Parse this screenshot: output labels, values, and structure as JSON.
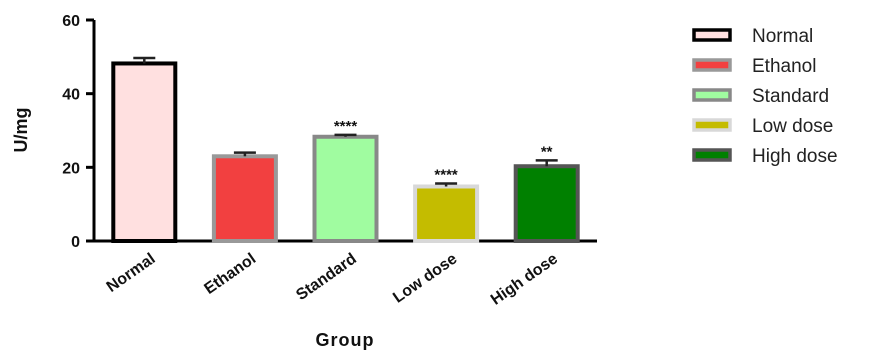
{
  "chart_data": {
    "type": "bar",
    "categories": [
      "Normal",
      "Ethanol",
      "Standard",
      "Low dose",
      "High dose"
    ],
    "values": [
      48.2,
      23.0,
      28.3,
      14.8,
      20.3
    ],
    "errors": [
      1.5,
      1.0,
      0.5,
      0.8,
      1.6
    ],
    "significance": [
      "",
      "",
      "****",
      "****",
      "**"
    ],
    "colors": [
      {
        "fill": "#FFE0E0",
        "stroke": "#000000"
      },
      {
        "fill": "#F24040",
        "stroke": "#999999"
      },
      {
        "fill": "#A0FCA0",
        "stroke": "#888888"
      },
      {
        "fill": "#C4BC00",
        "stroke": "#D8D8D8"
      },
      {
        "fill": "#008000",
        "stroke": "#555555"
      }
    ],
    "legend": [
      "Normal",
      "Ethanol",
      "Standard",
      "Low dose",
      "High dose"
    ],
    "legend_position": "right",
    "title": "",
    "xlabel": "Group",
    "ylabel": "U/mg",
    "ylim": [
      0,
      60
    ],
    "yticks": [
      0,
      20,
      40,
      60
    ],
    "grid": false
  }
}
